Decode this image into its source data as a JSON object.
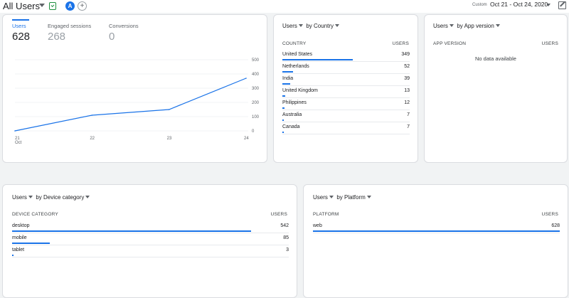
{
  "header": {
    "title": "All Users",
    "avatar_letter": "A",
    "add_symbol": "+",
    "custom_label": "Custom",
    "date_range": "Oct 21 - Oct 24, 2020"
  },
  "overview": {
    "metrics": [
      {
        "label": "Users",
        "value": "628"
      },
      {
        "label": "Engaged sessions",
        "value": "268"
      },
      {
        "label": "Conversions",
        "value": "0"
      }
    ]
  },
  "country_card": {
    "metric": "Users",
    "dimension": "by Country",
    "col1": "COUNTRY",
    "col2": "USERS",
    "rows": [
      {
        "label": "United States",
        "value": "349",
        "share": 1.0
      },
      {
        "label": "Netherlands",
        "value": "52",
        "share": 0.149
      },
      {
        "label": "India",
        "value": "39",
        "share": 0.112
      },
      {
        "label": "United Kingdom",
        "value": "13",
        "share": 0.037
      },
      {
        "label": "Philippines",
        "value": "12",
        "share": 0.034
      },
      {
        "label": "Australia",
        "value": "7",
        "share": 0.02
      },
      {
        "label": "Canada",
        "value": "7",
        "share": 0.02
      }
    ]
  },
  "app_version_card": {
    "metric": "Users",
    "dimension": "by App version",
    "col1": "APP VERSION",
    "col2": "USERS",
    "empty_text": "No data available"
  },
  "device_card": {
    "metric": "Users",
    "dimension": "by Device category",
    "col1": "DEVICE CATEGORY",
    "col2": "USERS",
    "rows": [
      {
        "label": "desktop",
        "value": "542",
        "share": 1.0
      },
      {
        "label": "mobile",
        "value": "85",
        "share": 0.157
      },
      {
        "label": "tablet",
        "value": "3",
        "share": 0.006
      }
    ]
  },
  "platform_card": {
    "metric": "Users",
    "dimension": "by Platform",
    "col1": "PLATFORM",
    "col2": "USERS",
    "rows": [
      {
        "label": "web",
        "value": "628",
        "share": 1.0
      }
    ]
  },
  "chart_data": {
    "type": "line",
    "x": [
      "21",
      "22",
      "23",
      "24"
    ],
    "x_sublabel": "Oct",
    "series": [
      {
        "values": [
          0,
          110,
          150,
          370
        ]
      }
    ],
    "y_ticks": [
      "500",
      "400",
      "300",
      "200",
      "100",
      "0"
    ],
    "ylim": [
      0,
      500
    ],
    "color": "#1a73e8"
  }
}
